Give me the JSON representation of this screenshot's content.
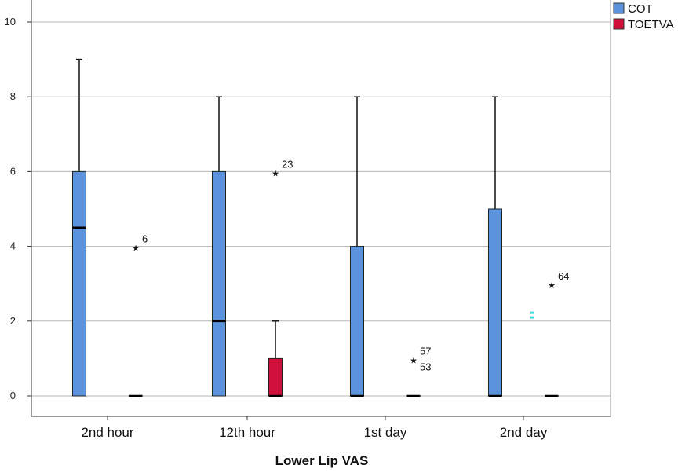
{
  "chart_data": {
    "type": "boxplot",
    "xlabel": "Lower Lip VAS",
    "ylabel": "",
    "ylim": [
      0,
      10
    ],
    "yticks": [
      "0",
      "2",
      "4",
      "6",
      "8",
      "10"
    ],
    "grid": "horizontal",
    "legend_position": "top-right",
    "categories": [
      "2nd hour",
      "12th hour",
      "1st day",
      "2nd day"
    ],
    "series": [
      {
        "name": "COT",
        "color": "#5b93dd",
        "boxes": [
          {
            "min": 0,
            "q1": 0,
            "median": 4.5,
            "q3": 6,
            "max": 9
          },
          {
            "min": 0,
            "q1": 0,
            "median": 2,
            "q3": 6,
            "max": 8
          },
          {
            "min": 0,
            "q1": 0,
            "median": 0,
            "q3": 4,
            "max": 8
          },
          {
            "min": 0,
            "q1": 0,
            "median": 0,
            "q3": 5,
            "max": 8
          }
        ]
      },
      {
        "name": "TOETVA",
        "color": "#d0103a",
        "boxes": [
          {
            "min": 0,
            "q1": 0,
            "median": 0,
            "q3": 0,
            "max": 0
          },
          {
            "min": 0,
            "q1": 0,
            "median": 0,
            "q3": 1,
            "max": 2
          },
          {
            "min": 0,
            "q1": 0,
            "median": 0,
            "q3": 0,
            "max": 0
          },
          {
            "min": 0,
            "q1": 0,
            "median": 0,
            "q3": 0,
            "max": 0
          }
        ]
      }
    ],
    "outliers": [
      {
        "category": "2nd hour",
        "series": "TOETVA",
        "y": 4,
        "label": "6"
      },
      {
        "category": "12th hour",
        "series": "TOETVA",
        "y": 6,
        "label": "23"
      },
      {
        "category": "1st day",
        "series": "TOETVA",
        "y": 1,
        "label": "57",
        "label2": "53"
      },
      {
        "category": "2nd day",
        "series": "TOETVA",
        "y": 3,
        "label": "64"
      }
    ],
    "annotations": [
      {
        "category": "2nd day",
        "series": "TOETVA",
        "y": 2.15,
        "color": "#3ce0e0"
      }
    ]
  }
}
